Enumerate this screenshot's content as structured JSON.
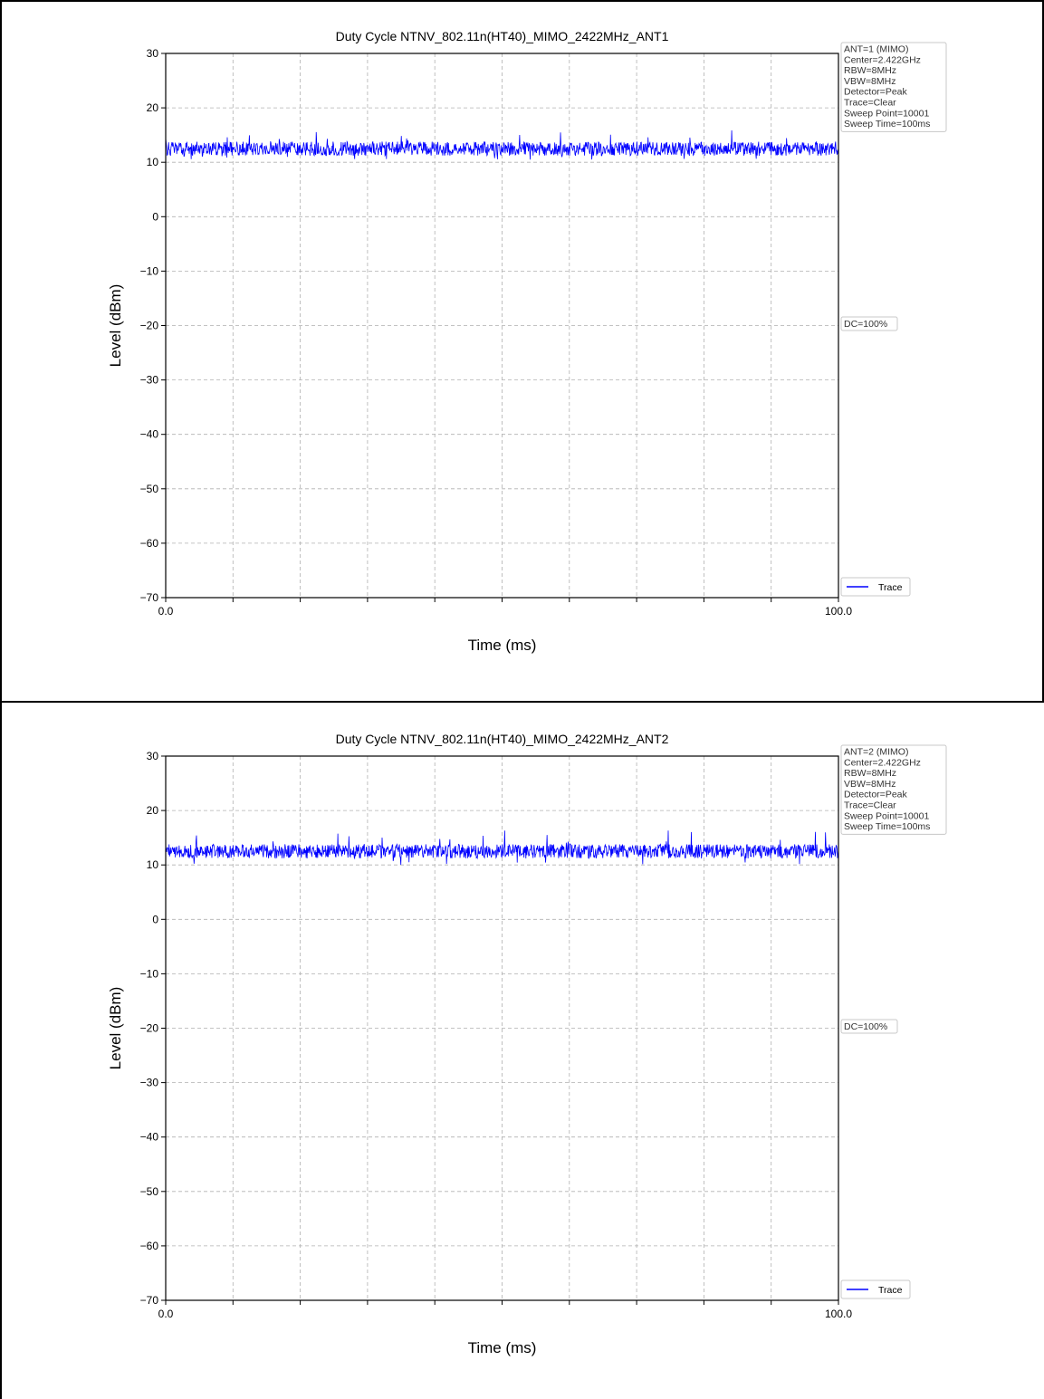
{
  "chart_data": [
    {
      "type": "line",
      "title": "Duty Cycle NTNV_802.11n(HT40)_MIMO_2422MHz_ANT1",
      "xlabel": "Time (ms)",
      "ylabel": "Level (dBm)",
      "xlim": [
        0,
        100
      ],
      "ylim": [
        -70,
        30
      ],
      "x_tick_labels": [
        "0.0",
        "100.0"
      ],
      "y_ticks": [
        30,
        20,
        10,
        0,
        -10,
        -20,
        -30,
        -40,
        -50,
        -60,
        -70
      ],
      "y_tick_labels": [
        "30",
        "20",
        "10",
        "0",
        "−10",
        "−20",
        "−30",
        "−40",
        "−50",
        "−60",
        "−70"
      ],
      "grid": true,
      "series": [
        {
          "name": "Trace",
          "color": "#0000ff",
          "mean": 12.5,
          "min": 10.5,
          "max": 16.0,
          "x_start": 0,
          "x_end": 100
        }
      ],
      "info_box": [
        "ANT=1 (MIMO)",
        "Center=2.422GHz",
        "RBW=8MHz",
        "VBW=8MHz",
        "Detector=Peak",
        "Trace=Clear",
        "Sweep Point=10001",
        "Sweep Time=100ms"
      ],
      "annotation": "DC=100%",
      "legend_position": "bottom-right-outside"
    },
    {
      "type": "line",
      "title": "Duty Cycle NTNV_802.11n(HT40)_MIMO_2422MHz_ANT2",
      "xlabel": "Time (ms)",
      "ylabel": "Level (dBm)",
      "xlim": [
        0,
        100
      ],
      "ylim": [
        -70,
        30
      ],
      "x_tick_labels": [
        "0.0",
        "100.0"
      ],
      "y_ticks": [
        30,
        20,
        10,
        0,
        -10,
        -20,
        -30,
        -40,
        -50,
        -60,
        -70
      ],
      "y_tick_labels": [
        "30",
        "20",
        "10",
        "0",
        "−10",
        "−20",
        "−30",
        "−40",
        "−50",
        "−60",
        "−70"
      ],
      "grid": true,
      "series": [
        {
          "name": "Trace",
          "color": "#0000ff",
          "mean": 12.5,
          "min": 10.0,
          "max": 17.0,
          "x_start": 0,
          "x_end": 100
        }
      ],
      "info_box": [
        "ANT=2 (MIMO)",
        "Center=2.422GHz",
        "RBW=8MHz",
        "VBW=8MHz",
        "Detector=Peak",
        "Trace=Clear",
        "Sweep Point=10001",
        "Sweep Time=100ms"
      ],
      "annotation": "DC=100%",
      "legend_position": "bottom-right-outside"
    }
  ]
}
